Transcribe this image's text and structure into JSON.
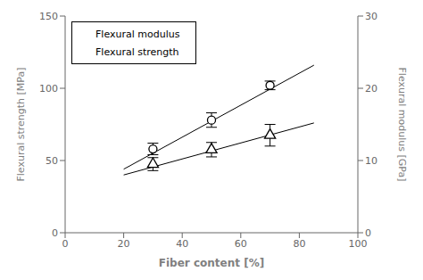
{
  "chart_data": {
    "type": "scatter",
    "title": "",
    "xlabel": "Fiber content [%]",
    "ylabel": "Flexural strength [MPa]",
    "y2label": "Flexural modulus [GPa]",
    "xlim": [
      0,
      100
    ],
    "xticks": [
      0,
      20,
      40,
      60,
      80,
      100
    ],
    "ylim": [
      0,
      150
    ],
    "yticks": [
      0,
      50,
      100,
      150
    ],
    "y2lim": [
      0,
      30
    ],
    "y2ticks": [
      0,
      10,
      20,
      30
    ],
    "grid": false,
    "legend": "upper left",
    "series": [
      {
        "name": "Flexural strength",
        "color": "#000000",
        "marker": "circle",
        "axis": "y",
        "x": [
          30,
          50,
          70
        ],
        "values": [
          58,
          78,
          102
        ],
        "errors": [
          4,
          5,
          3
        ],
        "trend": {
          "x": [
            20,
            85
          ],
          "values": [
            44,
            116
          ]
        }
      },
      {
        "name": "Flexural modulus",
        "color": "#000000",
        "marker": "triangle",
        "axis": "y2",
        "x": [
          30,
          50,
          70
        ],
        "values": [
          9.5,
          11.5,
          13.5
        ],
        "errors": [
          0.9,
          1.0,
          1.5
        ],
        "trend": {
          "x": [
            20,
            85
          ],
          "values": [
            8.0,
            15.2
          ]
        }
      }
    ]
  }
}
